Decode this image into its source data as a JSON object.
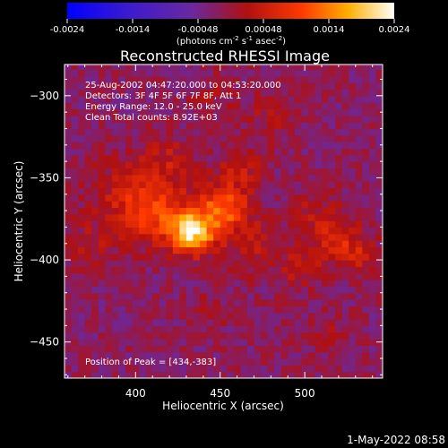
{
  "colorbar": {
    "ticks": [
      "-0.0024",
      "-0.0014",
      "-0.00048",
      "0.00048",
      "0.0014",
      "0.0024"
    ],
    "units_prefix": "(photons cm",
    "units_sup1": "-2",
    "units_mid": " s",
    "units_sup2": "-1",
    "units_mid2": " asec",
    "units_sup3": "-2",
    "units_suffix": ")"
  },
  "plot": {
    "title": "Reconstructed RHESSI Image",
    "xlabel": "Heliocentric X (arcsec)",
    "ylabel": "Heliocentric Y (arcsec)",
    "info_lines": [
      "25-Aug-2002 04:47:20.000 to 04:53:20.000",
      "Detectors: 3F 4F 5F 6F 7F 8F, Att 1",
      "Energy Range: 12.0 - 25.0 keV",
      "Clean      Total counts: 8.92E+03"
    ],
    "peak_text": "Position of Peak = [434,-383]"
  },
  "footer": {
    "timestamp": "1-May-2022 08:58"
  },
  "chart_data": {
    "type": "heatmap",
    "title": "Reconstructed RHESSI Image",
    "xlabel": "Heliocentric X (arcsec)",
    "ylabel": "Heliocentric Y (arcsec)",
    "xlim": [
      358,
      546
    ],
    "ylim": [
      -472,
      -281
    ],
    "x_ticks": [
      400,
      450,
      500
    ],
    "y_ticks": [
      -300,
      -350,
      -400,
      -450
    ],
    "colorbar_range": [
      -0.0024,
      0.0024
    ],
    "colormap": "rhessi (blue-purple-red-yellow-white)",
    "peak": [
      434,
      -383
    ],
    "grid": false,
    "sources": [
      {
        "x": 434,
        "y": -383,
        "amplitude": 0.0022,
        "sigma": 9
      },
      {
        "x": 452,
        "y": -368,
        "amplitude": 0.0014,
        "sigma": 10
      },
      {
        "x": 413,
        "y": -372,
        "amplitude": 0.001,
        "sigma": 13
      },
      {
        "x": 395,
        "y": -360,
        "amplitude": 0.0006,
        "sigma": 16
      },
      {
        "x": 462,
        "y": -343,
        "amplitude": 0.0006,
        "sigma": 9
      },
      {
        "x": 420,
        "y": -340,
        "amplitude": 0.0005,
        "sigma": 11
      },
      {
        "x": 520,
        "y": -388,
        "amplitude": 0.0006,
        "sigma": 10
      },
      {
        "x": 508,
        "y": -372,
        "amplitude": 0.0004,
        "sigma": 12
      },
      {
        "x": 498,
        "y": -405,
        "amplitude": 0.0005,
        "sigma": 9
      },
      {
        "x": 532,
        "y": -398,
        "amplitude": 0.0005,
        "sigma": 9
      },
      {
        "x": 480,
        "y": -312,
        "amplitude": 0.0004,
        "sigma": 10
      },
      {
        "x": 445,
        "y": -300,
        "amplitude": 0.0003,
        "sigma": 10
      },
      {
        "x": 372,
        "y": -392,
        "amplitude": 0.0004,
        "sigma": 10
      },
      {
        "x": 442,
        "y": -430,
        "amplitude": 0.0003,
        "sigma": 8
      },
      {
        "x": 515,
        "y": -445,
        "amplitude": 0.0003,
        "sigma": 9
      },
      {
        "x": 470,
        "y": -390,
        "amplitude": 0.0005,
        "sigma": 12
      }
    ]
  }
}
